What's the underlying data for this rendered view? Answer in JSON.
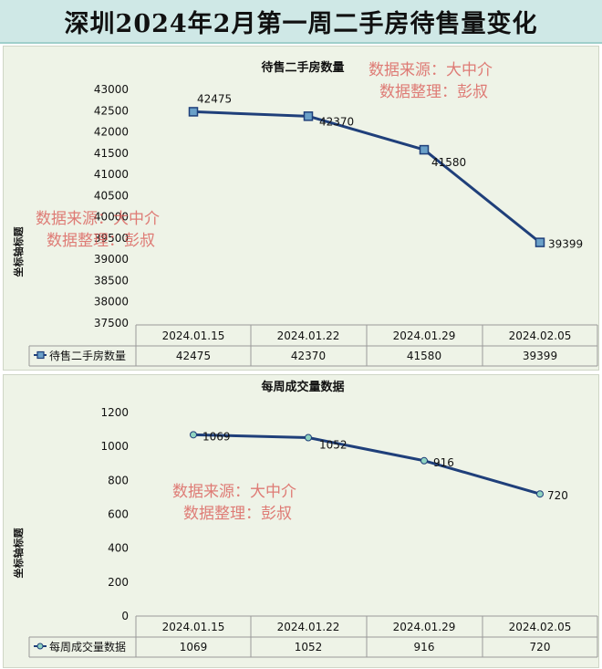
{
  "page": {
    "title": "深圳2024年2月第一周二手房待售量变化"
  },
  "watermark": {
    "line1": "数据来源：大中介",
    "line2": "数据整理：彭叔"
  },
  "chart_data": [
    {
      "type": "line",
      "title": "待售二手房数量",
      "ylabel": "坐标轴标题",
      "categories": [
        "2024.01.15",
        "2024.01.22",
        "2024.01.29",
        "2024.02.05"
      ],
      "series": [
        {
          "name": "待售二手房数量",
          "values": [
            42475,
            42370,
            41580,
            39399
          ]
        }
      ],
      "ylim": [
        37500,
        43000
      ],
      "yticks": [
        43000,
        42500,
        42000,
        41500,
        41000,
        40500,
        40000,
        39500,
        39000,
        38500,
        38000,
        37500
      ],
      "marker": "square",
      "color": "#1f3f7a",
      "grid": false,
      "data_table": true
    },
    {
      "type": "line",
      "title": "每周成交量数据",
      "ylabel": "坐标轴标题",
      "categories": [
        "2024.01.15",
        "2024.01.22",
        "2024.01.29",
        "2024.02.05"
      ],
      "series": [
        {
          "name": "每周成交量数据",
          "values": [
            1069,
            1052,
            916,
            720
          ]
        }
      ],
      "ylim": [
        0,
        1200
      ],
      "yticks": [
        1200,
        1000,
        800,
        600,
        400,
        200,
        0
      ],
      "marker": "circle",
      "color": "#1f3f7a",
      "grid": false,
      "data_table": true
    }
  ]
}
